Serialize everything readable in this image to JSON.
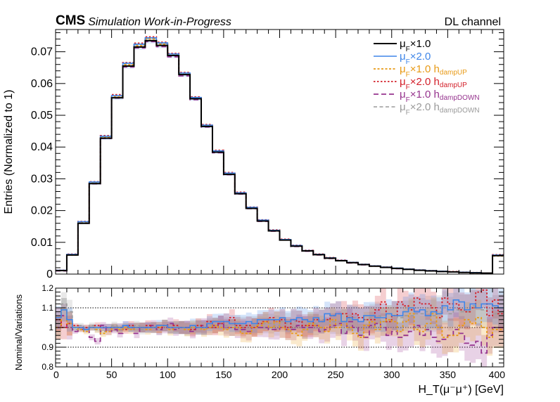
{
  "header": {
    "experiment": "CMS",
    "status": "Simulation Work-in-Progress",
    "channel": "DL channel"
  },
  "chart_data": [
    {
      "type": "line",
      "panel": "distribution",
      "ylabel": "Entries (Normalized to 1)",
      "xlim": [
        0,
        400
      ],
      "ylim": [
        0,
        0.077
      ],
      "ytick_labels": [
        "0",
        "0.01",
        "0.02",
        "0.03",
        "0.04",
        "0.05",
        "0.06",
        "0.07"
      ],
      "bin_edges": [
        0,
        10,
        20,
        30,
        40,
        50,
        60,
        70,
        80,
        90,
        100,
        110,
        120,
        130,
        140,
        150,
        160,
        170,
        180,
        190,
        200,
        210,
        220,
        230,
        240,
        250,
        260,
        270,
        280,
        290,
        300,
        310,
        320,
        330,
        340,
        350,
        360,
        370,
        380,
        390,
        400
      ],
      "series": [
        {
          "name": "μF×1.0",
          "key": "nominal",
          "values": [
            0.0011,
            0.006,
            0.016,
            0.0285,
            0.0428,
            0.0555,
            0.0655,
            0.0715,
            0.0735,
            0.072,
            0.0688,
            0.0628,
            0.0552,
            0.0465,
            0.0384,
            0.0314,
            0.0253,
            0.0207,
            0.0167,
            0.0136,
            0.0107,
            0.0088,
            0.0073,
            0.0061,
            0.005,
            0.0042,
            0.0036,
            0.003,
            0.0025,
            0.0021,
            0.0018,
            0.0015,
            0.0012,
            0.001,
            0.0008,
            0.0007,
            0.0005,
            0.0004,
            0.0003,
            0.0058
          ]
        },
        {
          "name": "μF×2.0",
          "key": "muf2",
          "values": [
            0.0012,
            0.0062,
            0.0165,
            0.029,
            0.0434,
            0.0562,
            0.0664,
            0.0724,
            0.0744,
            0.0728,
            0.0693,
            0.0633,
            0.0556,
            0.0469,
            0.0388,
            0.0318,
            0.0256,
            0.021,
            0.017,
            0.0138,
            0.0109,
            0.009,
            0.0074,
            0.0062,
            0.0051,
            0.0043,
            0.0037,
            0.0031,
            0.0026,
            0.0022,
            0.0019,
            0.0016,
            0.0013,
            0.0011,
            0.0009,
            0.0007,
            0.0006,
            0.0005,
            0.0003,
            0.006
          ]
        },
        {
          "name": "μF×1.0 hdampUP",
          "key": "hdup",
          "values": [
            0.0011,
            0.006,
            0.0162,
            0.0288,
            0.0431,
            0.0558,
            0.0659,
            0.0719,
            0.074,
            0.0724,
            0.069,
            0.063,
            0.0554,
            0.0467,
            0.0386,
            0.0316,
            0.0255,
            0.0209,
            0.0168,
            0.0137,
            0.0108,
            0.0089,
            0.0073,
            0.0061,
            0.005,
            0.0042,
            0.0036,
            0.003,
            0.0025,
            0.0021,
            0.0018,
            0.0015,
            0.0012,
            0.001,
            0.0008,
            0.0007,
            0.0005,
            0.0004,
            0.0003,
            0.0057
          ]
        },
        {
          "name": "μF×2.0 hdampUP",
          "key": "muf2hdup",
          "values": [
            0.0012,
            0.0063,
            0.0166,
            0.0291,
            0.0436,
            0.0565,
            0.0666,
            0.0727,
            0.0747,
            0.073,
            0.0695,
            0.0635,
            0.0558,
            0.0471,
            0.039,
            0.032,
            0.0258,
            0.0211,
            0.0171,
            0.0139,
            0.011,
            0.0091,
            0.0075,
            0.0063,
            0.0052,
            0.0044,
            0.0037,
            0.0031,
            0.0026,
            0.0022,
            0.0019,
            0.0016,
            0.0013,
            0.0011,
            0.0009,
            0.0008,
            0.0006,
            0.0005,
            0.0003,
            0.0061
          ]
        },
        {
          "name": "μF×1.0 hdampDOWN",
          "key": "hddown",
          "values": [
            0.001,
            0.0061,
            0.016,
            0.0284,
            0.0427,
            0.0554,
            0.0652,
            0.0712,
            0.0732,
            0.0716,
            0.0684,
            0.0624,
            0.0549,
            0.0463,
            0.0382,
            0.0313,
            0.0252,
            0.0206,
            0.0166,
            0.0135,
            0.0107,
            0.0087,
            0.0072,
            0.006,
            0.0049,
            0.0042,
            0.0035,
            0.0029,
            0.0025,
            0.0021,
            0.0017,
            0.0015,
            0.0012,
            0.001,
            0.0008,
            0.0007,
            0.0005,
            0.0004,
            0.0003,
            0.0059
          ]
        },
        {
          "name": "μF×2.0 hdampDOWN",
          "key": "muf2hddown",
          "values": [
            0.0011,
            0.0062,
            0.0164,
            0.0289,
            0.0433,
            0.0561,
            0.0662,
            0.0722,
            0.0742,
            0.0726,
            0.0692,
            0.0632,
            0.0555,
            0.0468,
            0.0387,
            0.0317,
            0.0256,
            0.0209,
            0.0169,
            0.0137,
            0.0109,
            0.0089,
            0.0074,
            0.0062,
            0.0051,
            0.0043,
            0.0036,
            0.003,
            0.0026,
            0.0022,
            0.0018,
            0.0016,
            0.0013,
            0.0011,
            0.0009,
            0.0007,
            0.0006,
            0.0004,
            0.0003,
            0.0059
          ]
        }
      ]
    },
    {
      "type": "line",
      "panel": "ratio",
      "ylabel": "Nominal/Variations",
      "xlabel": "H_T(μ⁻μ⁺) [GeV]",
      "xlim": [
        0,
        400
      ],
      "ylim": [
        0.8,
        1.2
      ],
      "ytick_labels": [
        "0.8",
        "0.9",
        "1",
        "1.1",
        "1.2"
      ],
      "xtick_labels": [
        "0",
        "50",
        "100",
        "150",
        "200",
        "250",
        "300",
        "350",
        "400"
      ],
      "reference_lines": [
        0.9,
        1.0,
        1.1
      ],
      "bin_edges": [
        0,
        5,
        10,
        15,
        20,
        25,
        30,
        35,
        40,
        45,
        50,
        55,
        60,
        65,
        70,
        75,
        80,
        85,
        90,
        95,
        100,
        105,
        110,
        115,
        120,
        125,
        130,
        135,
        140,
        145,
        150,
        155,
        160,
        165,
        170,
        175,
        180,
        185,
        190,
        195,
        200,
        205,
        210,
        215,
        220,
        225,
        230,
        235,
        240,
        245,
        250,
        255,
        260,
        265,
        270,
        275,
        280,
        285,
        290,
        295,
        300,
        305,
        310,
        315,
        320,
        325,
        330,
        335,
        340,
        345,
        350,
        355,
        360,
        365,
        370,
        375,
        380,
        385,
        390,
        395,
        400
      ],
      "series": [
        {
          "name": "μF×2.0",
          "key": "muf2",
          "values": [
            1.05,
            1.09,
            1.04,
            1.0,
            1.0,
            0.99,
            1.0,
            1.0,
            1.0,
            1.0,
            1.0,
            1.0,
            1.01,
            1.0,
            1.0,
            1.0,
            1.0,
            1.0,
            1.01,
            1.01,
            1.0,
            1.0,
            1.0,
            1.0,
            1.01,
            1.0,
            1.0,
            1.02,
            1.03,
            1.03,
            1.03,
            1.02,
            1.02,
            1.02,
            1.03,
            1.02,
            1.04,
            1.04,
            1.04,
            1.04,
            1.05,
            1.03,
            1.04,
            1.05,
            1.04,
            1.03,
            1.05,
            1.03,
            1.07,
            1.06,
            1.07,
            1.03,
            1.05,
            1.04,
            1.03,
            1.06,
            1.06,
            1.05,
            1.05,
            1.07,
            1.06,
            1.06,
            1.08,
            1.1,
            1.08,
            1.09,
            1.06,
            1.08,
            1.07,
            1.11,
            1.09,
            1.14,
            1.13,
            1.09,
            1.12,
            1.1,
            1.12,
            1.12,
            1.11,
            1.1
          ]
        },
        {
          "name": "μF×1.0 hdampUP",
          "key": "hdup",
          "values": [
            1.0,
            1.09,
            1.02,
            1.0,
            0.99,
            0.98,
            1.0,
            0.99,
            0.97,
            0.98,
            1.0,
            0.99,
            1.0,
            0.99,
            1.0,
            1.0,
            0.99,
            1.0,
            1.0,
            1.01,
            0.99,
            1.0,
            1.0,
            0.99,
            1.0,
            1.0,
            0.99,
            1.0,
            1.01,
            1.0,
            0.99,
            1.0,
            1.0,
            0.97,
            0.97,
            1.0,
            1.01,
            1.03,
            1.0,
            1.03,
            1.0,
            0.99,
            0.97,
            0.96,
            0.99,
            1.02,
            1.01,
            1.0,
            0.98,
            1.04,
            1.0,
            1.03,
            1.0,
            0.97,
            0.95,
            1.01,
            1.03,
            0.99,
            1.03,
            1.04,
            1.03,
            0.98,
            1.03,
            1.07,
            0.99,
            0.98,
            1.02,
            1.07,
            1.0,
            0.95,
            0.96,
            0.96,
            1.01,
            1.04,
            1.02,
            1.05,
            1.0,
            0.95,
            0.99,
            0.99
          ]
        },
        {
          "name": "μF×2.0 hdampUP",
          "key": "muf2hdup",
          "values": [
            1.04,
            1.0,
            1.02,
            1.01,
            1.0,
            1.0,
            1.0,
            1.01,
            1.0,
            1.0,
            1.0,
            1.0,
            0.99,
            1.01,
            1.0,
            1.0,
            1.01,
            1.0,
            1.0,
            1.01,
            1.0,
            1.01,
            1.0,
            1.0,
            0.99,
            1.01,
            1.0,
            1.03,
            1.0,
            1.02,
            1.03,
            1.05,
            1.01,
            1.0,
            1.01,
            1.0,
            1.02,
            1.03,
            1.05,
            1.03,
            1.04,
            1.0,
            1.04,
            1.03,
            1.01,
            1.01,
            1.04,
            1.03,
            1.04,
            1.06,
            1.07,
            1.07,
            1.05,
            1.07,
            1.05,
            1.04,
            1.04,
            1.09,
            1.13,
            1.03,
            1.06,
            1.13,
            1.11,
            1.09,
            1.15,
            1.12,
            1.12,
            1.1,
            1.05,
            1.15,
            1.12,
            1.12,
            1.09,
            1.08,
            1.1,
            1.18,
            1.19,
            1.06,
            1.14,
            1.07
          ]
        },
        {
          "name": "μF×1.0 hdampDOWN",
          "key": "hddown",
          "values": [
            1.0,
            1.06,
            1.0,
            0.98,
            0.99,
            0.99,
            0.95,
            0.93,
            1.01,
            0.98,
            0.99,
            0.97,
            1.01,
            1.0,
            0.97,
            1.0,
            1.0,
            1.01,
            0.99,
            1.0,
            1.02,
            0.99,
            1.0,
            1.0,
            0.98,
            1.0,
            1.01,
            1.0,
            1.01,
            1.02,
            1.0,
            1.0,
            0.99,
            0.99,
            0.98,
            1.0,
            1.0,
            1.0,
            0.99,
            0.99,
            1.0,
            0.99,
            0.99,
            1.01,
            1.0,
            1.0,
            1.01,
            0.98,
            0.99,
            1.01,
            1.02,
            0.97,
            1.03,
            1.0,
            0.96,
            0.95,
            1.01,
            1.02,
            1.0,
            0.96,
            0.98,
            0.95,
            0.96,
            0.98,
            1.01,
            0.96,
            0.99,
            0.95,
            0.93,
            0.94,
            0.96,
            0.99,
            0.97,
            0.92,
            0.91,
            0.93,
            0.87,
            0.96,
            1.0,
            1.0
          ]
        },
        {
          "name": "μF×2.0 hdampDOWN",
          "key": "muf2hddown",
          "values": [
            1.02,
            1.12,
            1.08,
            0.99,
            1.01,
            1.0,
            1.01,
            0.99,
            0.98,
            1.0,
            1.01,
            0.99,
            1.0,
            1.0,
            1.01,
            0.99,
            1.0,
            1.0,
            0.99,
            1.01,
            1.0,
            1.0,
            1.0,
            0.99,
            1.0,
            1.01,
            1.0,
            1.01,
            1.01,
            1.02,
            1.01,
            1.0,
            1.02,
            1.01,
            1.01,
            1.01,
            1.02,
            1.02,
            1.02,
            1.01,
            1.03,
            1.02,
            1.03,
            1.03,
            1.0,
            1.02,
            1.02,
            1.04,
            1.04,
            1.03,
            1.03,
            1.03,
            1.04,
            1.05,
            1.03,
            1.04,
            1.05,
            1.06,
            1.03,
            1.04,
            1.06,
            1.05,
            1.06,
            1.06,
            1.07,
            1.07,
            1.08,
            1.06,
            1.08,
            1.1,
            1.07,
            1.09,
            1.08,
            1.08,
            1.11,
            1.1,
            1.09,
            1.12,
            1.07,
            1.08
          ]
        }
      ]
    }
  ],
  "colors": {
    "nominal": "#000000",
    "muf2": "#3f86e8",
    "hdup": "#e89a16",
    "muf2hdup": "#d3202a",
    "hddown": "#96348e",
    "muf2hddown": "#9a9a9a",
    "band_opacity": 0.22
  }
}
